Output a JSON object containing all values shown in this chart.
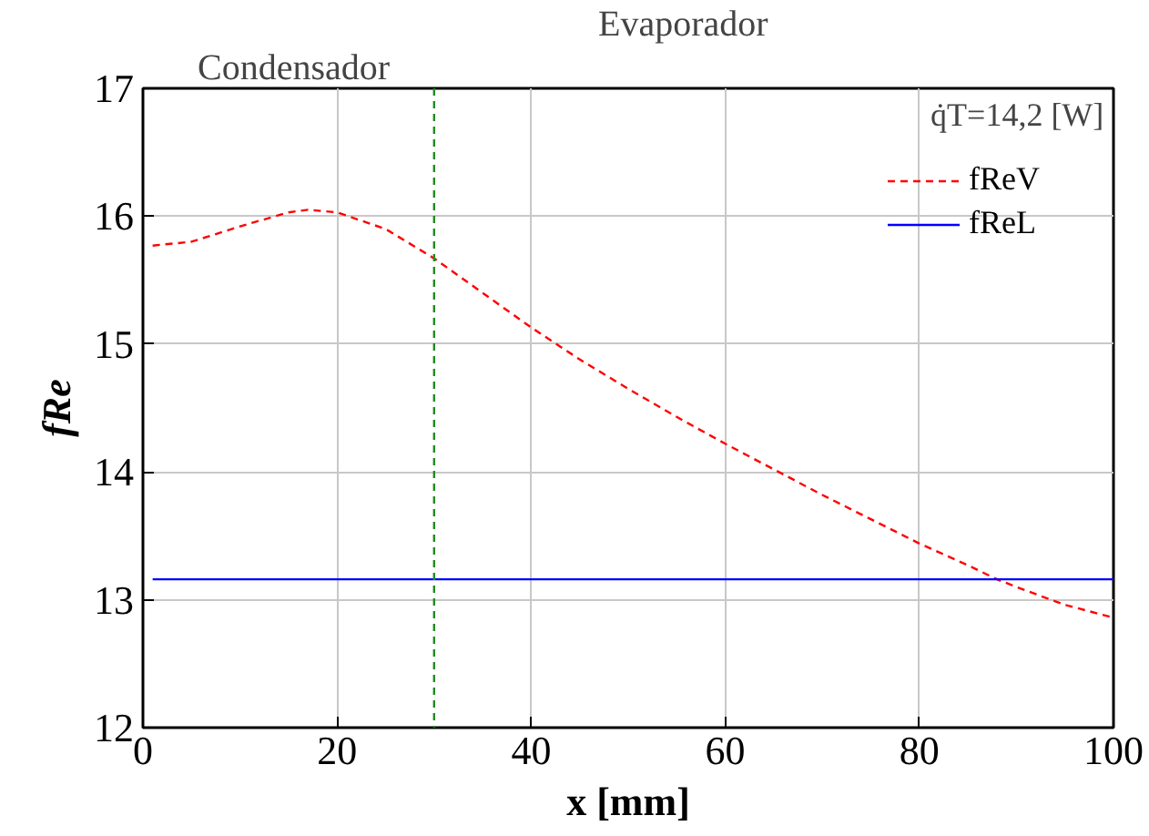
{
  "chart_data": {
    "type": "line",
    "xlabel": "x [mm]",
    "ylabel": "fRe",
    "x": [
      1,
      5,
      10,
      15,
      17,
      20,
      25,
      30,
      35,
      40,
      45,
      50,
      55,
      60,
      65,
      70,
      75,
      80,
      85,
      88,
      90,
      95,
      100
    ],
    "series": [
      {
        "name": "fReV",
        "color": "#ff0000",
        "line_style": "dashed",
        "values": [
          15.77,
          15.8,
          15.92,
          16.03,
          16.05,
          16.03,
          15.9,
          15.67,
          15.4,
          15.13,
          14.88,
          14.65,
          14.43,
          14.22,
          14.02,
          13.82,
          13.63,
          13.44,
          13.27,
          13.16,
          13.1,
          12.96,
          12.86
        ]
      },
      {
        "name": "fReL",
        "color": "#0000ff",
        "line_style": "solid",
        "values": [
          13.16,
          13.16,
          13.16,
          13.16,
          13.16,
          13.16,
          13.16,
          13.16,
          13.16,
          13.16,
          13.16,
          13.16,
          13.16,
          13.16,
          13.16,
          13.16,
          13.16,
          13.16,
          13.16,
          13.16,
          13.16,
          13.16,
          13.16
        ]
      }
    ],
    "xlim": [
      0,
      100
    ],
    "ylim": [
      12,
      17
    ],
    "xticks": [
      0,
      20,
      40,
      60,
      80,
      100
    ],
    "yticks": [
      12,
      13,
      14,
      15,
      16,
      17
    ],
    "grid": true,
    "legend": "top right",
    "marker": "none",
    "ref_lines": [
      {
        "axis": "x",
        "value": 30,
        "label": null,
        "color": "#228b22",
        "line_style": "dashed"
      }
    ],
    "annotations": [
      "Condensador",
      "Evaporador",
      "q̇T=14,2 [W]"
    ]
  }
}
